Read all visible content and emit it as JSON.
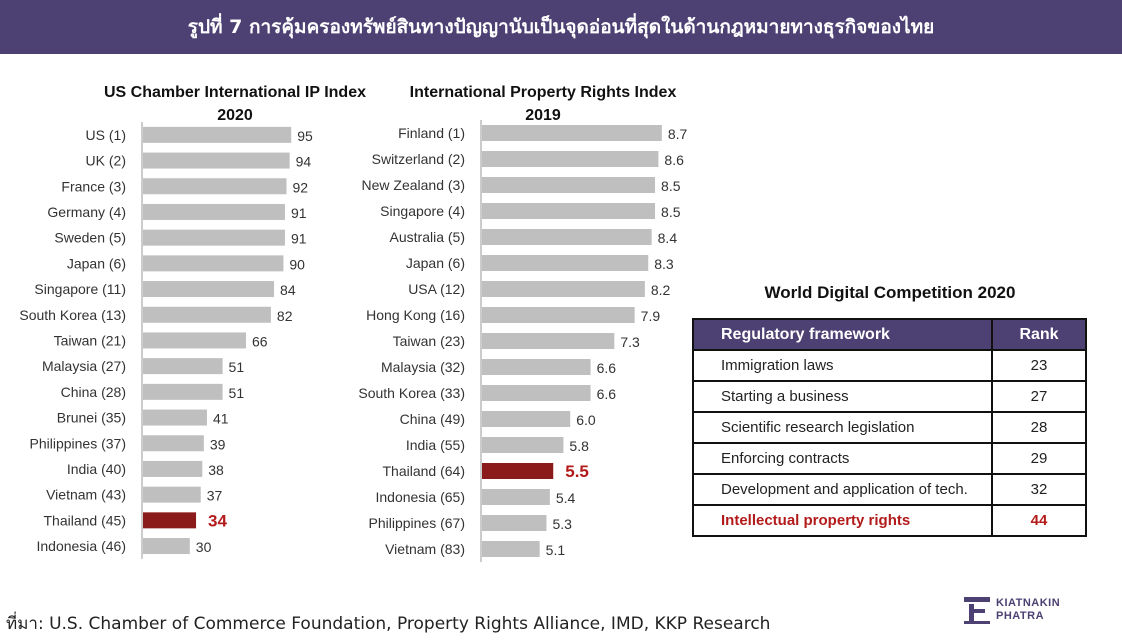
{
  "banner": {
    "title": "รูปที่ 7 การคุ้มครองทรัพย์สินทางปัญญานับเป็นจุดอ่อนที่สุดในด้านกฎหมายทางธุรกิจของไทย"
  },
  "chart_data": [
    {
      "type": "bar",
      "orientation": "horizontal",
      "title": "US Chamber International IP Index",
      "subtitle": "2020",
      "categories": [
        "US (1)",
        "UK (2)",
        "France (3)",
        "Germany (4)",
        "Sweden (5)",
        "Japan (6)",
        "Singapore (11)",
        "South Korea (13)",
        "Taiwan (21)",
        "Malaysia (27)",
        "China (28)",
        "Brunei (35)",
        "Philippines (37)",
        "India (40)",
        "Vietnam (43)",
        "Thailand (45)",
        "Indonesia (46)"
      ],
      "values": [
        95,
        94,
        92,
        91,
        91,
        90,
        84,
        82,
        66,
        51,
        51,
        41,
        39,
        38,
        37,
        34,
        30
      ],
      "value_labels": [
        "95",
        "94",
        "92",
        "91",
        "91",
        "90",
        "84",
        "82",
        "66",
        "51",
        "51",
        "41",
        "39",
        "38",
        "37",
        "34",
        "30"
      ],
      "highlight": "Thailand (45)",
      "xlim": [
        0,
        100
      ],
      "grid": false,
      "colors": {
        "bar": "#bfbfbf",
        "highlight": "#8b1a1a",
        "highlight_label": "#b31b1b"
      }
    },
    {
      "type": "bar",
      "orientation": "horizontal",
      "title": "International Property Rights Index",
      "subtitle": "2019",
      "categories": [
        "Finland (1)",
        "Switzerland (2)",
        "New Zealand (3)",
        "Singapore (4)",
        "Australia (5)",
        "Japan (6)",
        "USA (12)",
        "Hong Kong (16)",
        "Taiwan (23)",
        "Malaysia (32)",
        "South Korea (33)",
        "China (49)",
        "India (55)",
        "Thailand (64)",
        "Indonesia (65)",
        "Philippines (67)",
        "Vietnam (83)"
      ],
      "values": [
        8.7,
        8.6,
        8.5,
        8.5,
        8.4,
        8.3,
        8.2,
        7.9,
        7.3,
        6.6,
        6.6,
        6.0,
        5.8,
        5.5,
        5.4,
        5.3,
        5.1
      ],
      "value_labels": [
        "8.7",
        "8.6",
        "8.5",
        "8.5",
        "8.4",
        "8.3",
        "8.2",
        "7.9",
        "7.3",
        "6.6",
        "6.6",
        "6.0",
        "5.8",
        "5.5",
        "5.4",
        "5.3",
        "5.1"
      ],
      "highlight": "Thailand (64)",
      "xlim": [
        3.4,
        9.0
      ],
      "grid": false,
      "colors": {
        "bar": "#bfbfbf",
        "highlight": "#8b1a1a",
        "highlight_label": "#b31b1b"
      }
    },
    {
      "type": "table",
      "title": "World Digital Competition 2020",
      "columns": [
        "Regulatory framework",
        "Rank"
      ],
      "rows": [
        [
          "Immigration laws",
          "23"
        ],
        [
          "Starting a business",
          "27"
        ],
        [
          "Scientific research legislation",
          "28"
        ],
        [
          "Enforcing contracts",
          "29"
        ],
        [
          "Development and application of tech.",
          "32"
        ],
        [
          "Intellectual property rights",
          "44"
        ]
      ],
      "highlight_row": 5,
      "colors": {
        "header": "#4d4072",
        "highlight_text": "#b31b1b"
      }
    }
  ],
  "source": "ที่มา: U.S. Chamber of Commerce Foundation, Property Rights Alliance, IMD, KKP Research",
  "logo": {
    "line1": "KIATNAKIN",
    "line2": "PHATRA",
    "color": "#4d4072"
  }
}
